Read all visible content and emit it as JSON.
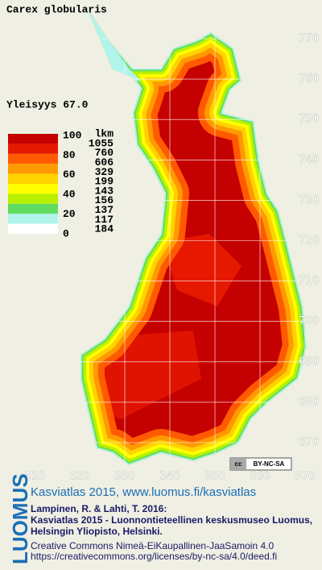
{
  "title": "Carex globularis",
  "frequency": "Yleisyys 67.0",
  "legend": {
    "scale": [
      100,
      80,
      60,
      40,
      20,
      0
    ],
    "count_header": "lkm",
    "bands": [
      {
        "color": "#c40000",
        "count": 1055
      },
      {
        "color": "#e61800",
        "count": 760
      },
      {
        "color": "#ff5a00",
        "count": 606
      },
      {
        "color": "#ff9a00",
        "count": 329
      },
      {
        "color": "#ffd200",
        "count": 199
      },
      {
        "color": "#ffff00",
        "count": 143
      },
      {
        "color": "#b8f000",
        "count": 156
      },
      {
        "color": "#60dc60",
        "count": 137
      },
      {
        "color": "#b0f4ec",
        "count": 117
      },
      {
        "color": "#ffffff",
        "count": 184
      }
    ]
  },
  "map": {
    "yticks": [
      770,
      760,
      750,
      740,
      730,
      720,
      710,
      700,
      690,
      680,
      670
    ],
    "xticks": [
      310,
      320,
      330,
      340,
      350,
      360,
      370
    ]
  },
  "badge": {
    "icon": "cc",
    "label": "BY-NC-SA"
  },
  "logo": "LUOMUS",
  "footer": {
    "headline": "Kasviatlas 2015, www.luomus.fi/kasviatlas",
    "citation": [
      "Lampinen, R. & Lahti, T. 2016:",
      "Kasviatlas 2015 - Luonnontieteellinen keskusmuseo Luomus,",
      "Helsingin Yliopisto, Helsinki."
    ],
    "license": [
      "Creative Commons Nimeä-EiKaupallinen-JaaSamoin 4.0",
      "https://creativecommons.org/licenses/by-nc-sa/4.0/deed.fi"
    ]
  }
}
